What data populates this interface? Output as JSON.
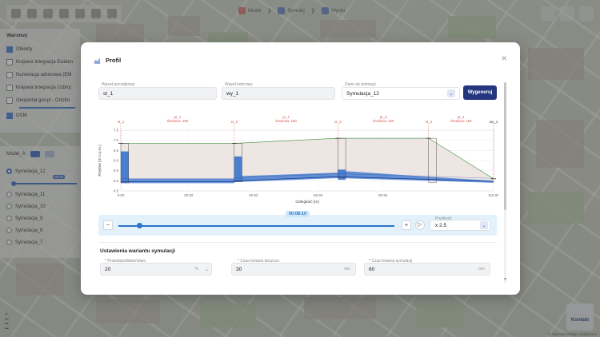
{
  "app": {
    "steps": [
      {
        "label": "Model",
        "color": "#d9534f"
      },
      {
        "label": "Symuluj",
        "color": "#3f6cc4"
      },
      {
        "label": "Wyniki",
        "color": "#3f6cc4"
      }
    ]
  },
  "layers": {
    "title": "Warstwy",
    "items": [
      {
        "label": "Obiekty",
        "checked": true
      },
      {
        "label": "Krajowa Integracja Ewiden",
        "checked": false
      },
      {
        "label": "Numeracja adresowa (EM",
        "checked": false
      },
      {
        "label": "Krajowa Integracja Uzbroj",
        "checked": false
      },
      {
        "label": "Geoportal.gov.pl - Ortofot",
        "checked": false
      },
      {
        "label": "OSM",
        "checked": true
      }
    ]
  },
  "models": {
    "model_name": "Model_A",
    "active_time": "00:02",
    "simulations": [
      "Symulacja_12",
      "Symulacja_11",
      "Symulacja_10",
      "Symulacja_9",
      "Symulacja_8",
      "Symulacja_7"
    ]
  },
  "contact": {
    "label": "Kontakt"
  },
  "attribution": "© OpenStreetMap contributors",
  "modal": {
    "title": "Profil",
    "start_node": {
      "label": "Węzeł początkowy",
      "value": "st_1"
    },
    "end_node": {
      "label": "Węzeł końcowy",
      "value": "wy_1"
    },
    "animation_data": {
      "label": "Dane do animacji",
      "value": "Symulacja_12"
    },
    "generate_label": "Wygeneruj",
    "player": {
      "time": "00:08:10",
      "speed_label": "Prędkość",
      "speed_value": "x 2.5"
    },
    "settings": {
      "title": "Ustawienia wariantu symulacji",
      "probability": {
        "label": "* Prawdopodobieństwo",
        "value": "20",
        "unit": "%"
      },
      "rain_time": {
        "label": "* Czas trwania deszczu",
        "value": "30",
        "unit": "min"
      },
      "sim_time": {
        "label": "* Czas trwania symulacji",
        "value": "60",
        "unit": "min"
      }
    }
  },
  "chart_data": {
    "type": "line",
    "xlabel": "Odległość [m]",
    "ylabel": "Rzędne [m n.p.m.]",
    "xlim": [
      0,
      115.06
    ],
    "ylim": [
      4.5,
      7.5
    ],
    "x_ticks": [
      "0.00",
      "20.92",
      "40.92",
      "60.92",
      "80.92",
      "115.06"
    ],
    "y_ticks": [
      "4.5",
      "5.0",
      "5.5",
      "6.0",
      "6.5",
      "7.0",
      "7.5"
    ],
    "nodes": [
      {
        "label": "st_1",
        "x": 0.0
      },
      {
        "label": "st_2",
        "x": 35.0
      },
      {
        "label": "st_3",
        "x": 67.0
      },
      {
        "label": "st_4",
        "x": 95.0
      },
      {
        "label": "wy_1",
        "x": 115.06
      }
    ],
    "pipes": [
      {
        "label": "pr_1",
        "diameter": "Średnica: 150",
        "x": 17.5
      },
      {
        "label": "pr_2",
        "diameter": "Średnica: 150",
        "x": 51.0
      },
      {
        "label": "pr_3",
        "diameter": "Średnica: 150",
        "x": 81.0
      },
      {
        "label": "pr_4",
        "diameter": "Średnica: 150",
        "x": 105.0
      }
    ],
    "series": [
      {
        "name": "terrain",
        "color": "#5aa05a",
        "x": [
          0,
          35,
          67,
          95,
          115.06
        ],
        "y": [
          6.85,
          6.85,
          7.1,
          7.1,
          5.1
        ]
      },
      {
        "name": "invert",
        "color": "#2b63c9",
        "x": [
          0,
          35,
          35,
          67,
          67,
          95,
          115.06
        ],
        "y": [
          4.95,
          4.95,
          5.0,
          5.2,
          5.2,
          5.07,
          4.97
        ]
      },
      {
        "name": "water",
        "color": "#4a7fd0",
        "x": [
          0,
          35,
          35,
          67,
          67,
          95,
          115.06
        ],
        "y": [
          5.1,
          5.1,
          5.22,
          5.4,
          5.5,
          5.2,
          5.0
        ]
      }
    ]
  }
}
